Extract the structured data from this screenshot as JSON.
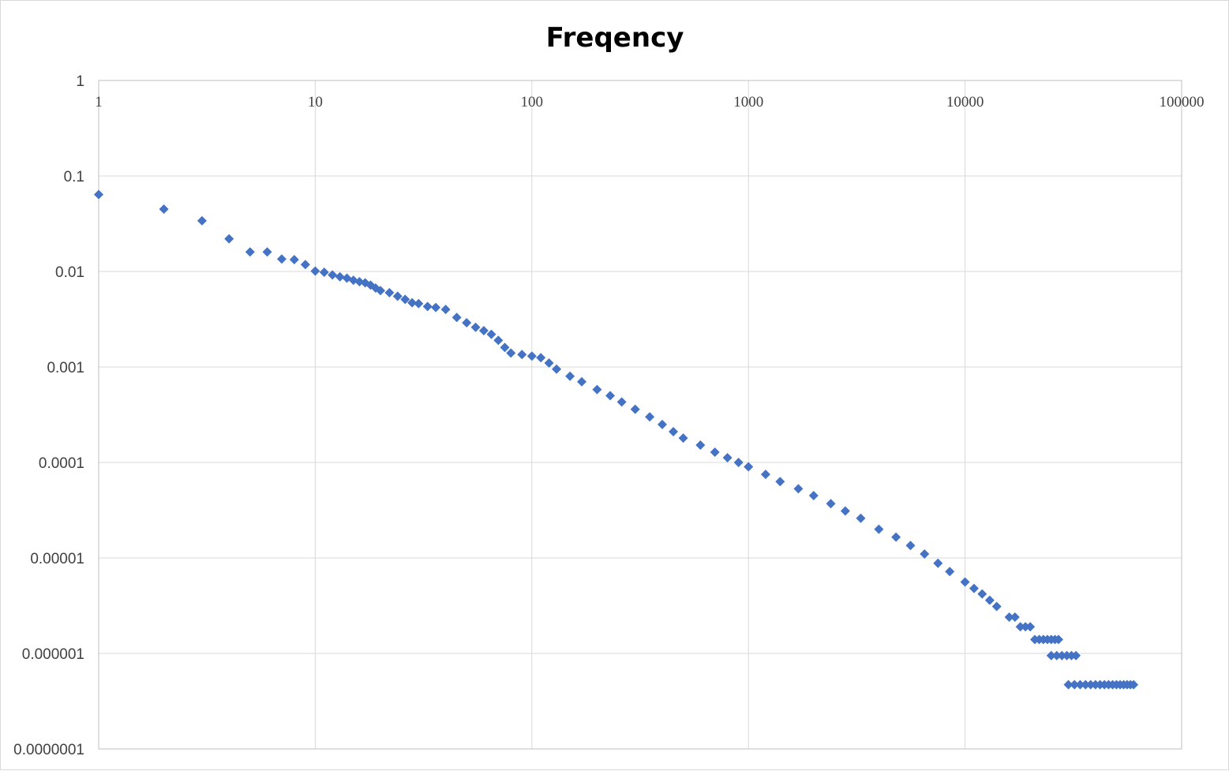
{
  "chart_data": {
    "type": "scatter",
    "title": "Freqency",
    "xlabel": "",
    "ylabel": "",
    "x_scale": "log",
    "y_scale": "log",
    "xlim": [
      1,
      100000
    ],
    "ylim": [
      1e-07,
      1
    ],
    "x_ticks": [
      "1",
      "10",
      "100",
      "1000",
      "10000",
      "100000"
    ],
    "y_ticks": [
      "1",
      "0.1",
      "0.01",
      "0.001",
      "0.0001",
      "0.00001",
      "0.000001",
      "0.0000001"
    ],
    "grid": true,
    "legend": "none",
    "marker": "diamond",
    "color": "#4472C4",
    "series": [
      {
        "points": [
          [
            1,
            0.064
          ],
          [
            2,
            0.045
          ],
          [
            3,
            0.034
          ],
          [
            4,
            0.022
          ],
          [
            5,
            0.016
          ],
          [
            6,
            0.016
          ],
          [
            7,
            0.0135
          ],
          [
            8,
            0.0133
          ],
          [
            9,
            0.0118
          ],
          [
            10,
            0.0101
          ],
          [
            11,
            0.0098
          ],
          [
            12,
            0.0092
          ],
          [
            13,
            0.0088
          ],
          [
            14,
            0.0085
          ],
          [
            15,
            0.0081
          ],
          [
            16,
            0.0078
          ],
          [
            17,
            0.0076
          ],
          [
            18,
            0.0072
          ],
          [
            19,
            0.0067
          ],
          [
            20,
            0.0063
          ],
          [
            22,
            0.006
          ],
          [
            24,
            0.0055
          ],
          [
            26,
            0.0051
          ],
          [
            28,
            0.0047
          ],
          [
            30,
            0.0046
          ],
          [
            33,
            0.0043
          ],
          [
            36,
            0.0042
          ],
          [
            40,
            0.004
          ],
          [
            45,
            0.0033
          ],
          [
            50,
            0.0029
          ],
          [
            55,
            0.0026
          ],
          [
            60,
            0.0024
          ],
          [
            65,
            0.0022
          ],
          [
            70,
            0.0019
          ],
          [
            75,
            0.0016
          ],
          [
            80,
            0.0014
          ],
          [
            90,
            0.00135
          ],
          [
            100,
            0.0013
          ],
          [
            110,
            0.00125
          ],
          [
            120,
            0.0011
          ],
          [
            130,
            0.00095
          ],
          [
            150,
            0.0008
          ],
          [
            170,
            0.0007
          ],
          [
            200,
            0.00058
          ],
          [
            230,
            0.0005
          ],
          [
            260,
            0.00043
          ],
          [
            300,
            0.00036
          ],
          [
            350,
            0.0003
          ],
          [
            400,
            0.00025
          ],
          [
            450,
            0.00021
          ],
          [
            500,
            0.00018
          ],
          [
            600,
            0.000152
          ],
          [
            700,
            0.000128
          ],
          [
            800,
            0.000112
          ],
          [
            900,
            0.0001
          ],
          [
            1000,
            9e-05
          ],
          [
            1200,
            7.5e-05
          ],
          [
            1400,
            6.3e-05
          ],
          [
            1700,
            5.3e-05
          ],
          [
            2000,
            4.5e-05
          ],
          [
            2400,
            3.7e-05
          ],
          [
            2800,
            3.1e-05
          ],
          [
            3300,
            2.6e-05
          ],
          [
            4000,
            2e-05
          ],
          [
            4800,
            1.65e-05
          ],
          [
            5600,
            1.35e-05
          ],
          [
            6500,
            1.1e-05
          ],
          [
            7500,
            8.8e-06
          ],
          [
            8500,
            7.2e-06
          ],
          [
            10000,
            5.6e-06
          ],
          [
            11000,
            4.8e-06
          ],
          [
            12000,
            4.2e-06
          ],
          [
            13000,
            3.6e-06
          ],
          [
            14000,
            3.1e-06
          ],
          [
            16000,
            2.4e-06
          ],
          [
            17000,
            2.4e-06
          ],
          [
            18000,
            1.9e-06
          ],
          [
            19000,
            1.9e-06
          ],
          [
            20000,
            1.9e-06
          ],
          [
            21000,
            1.4e-06
          ],
          [
            22000,
            1.4e-06
          ],
          [
            23000,
            1.4e-06
          ],
          [
            24000,
            1.4e-06
          ],
          [
            25000,
            1.4e-06
          ],
          [
            26000,
            1.4e-06
          ],
          [
            27000,
            1.4e-06
          ],
          [
            25000,
            9.5e-07
          ],
          [
            26500,
            9.5e-07
          ],
          [
            28000,
            9.5e-07
          ],
          [
            29500,
            9.5e-07
          ],
          [
            31000,
            9.5e-07
          ],
          [
            32500,
            9.5e-07
          ],
          [
            30000,
            4.7e-07
          ],
          [
            32000,
            4.7e-07
          ],
          [
            34000,
            4.7e-07
          ],
          [
            36000,
            4.7e-07
          ],
          [
            38000,
            4.7e-07
          ],
          [
            40000,
            4.7e-07
          ],
          [
            42000,
            4.7e-07
          ],
          [
            44000,
            4.7e-07
          ],
          [
            46000,
            4.7e-07
          ],
          [
            48000,
            4.7e-07
          ],
          [
            50000,
            4.7e-07
          ],
          [
            52000,
            4.7e-07
          ],
          [
            54000,
            4.7e-07
          ],
          [
            56000,
            4.7e-07
          ],
          [
            58000,
            4.7e-07
          ],
          [
            60000,
            4.7e-07
          ]
        ]
      }
    ]
  }
}
